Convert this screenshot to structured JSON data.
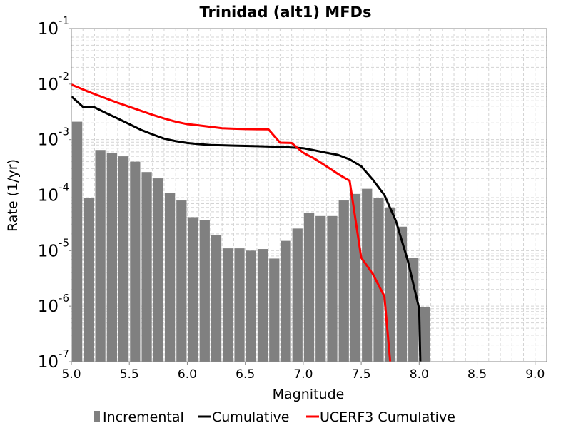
{
  "chart_data": {
    "type": "bar",
    "title": "Trinidad (alt1) MFDs",
    "xlabel": "Magnitude",
    "ylabel": "Rate (1/yr)",
    "xlim": [
      5.0,
      9.1
    ],
    "ylim": [
      1e-07,
      0.1
    ],
    "yscale": "log",
    "grid": true,
    "legend_position": "bottom",
    "x_ticks": [
      "5.0",
      "5.5",
      "6.0",
      "6.5",
      "7.0",
      "7.5",
      "8.0",
      "8.5",
      "9.0"
    ],
    "y_ticks": [
      {
        "base": "10",
        "exp": "-1"
      },
      {
        "base": "10",
        "exp": "-2"
      },
      {
        "base": "10",
        "exp": "-3"
      },
      {
        "base": "10",
        "exp": "-4"
      },
      {
        "base": "10",
        "exp": "-5"
      },
      {
        "base": "10",
        "exp": "-6"
      },
      {
        "base": "10",
        "exp": "-7"
      }
    ],
    "series": [
      {
        "name": "Incremental",
        "kind": "bar",
        "color": "#808080",
        "bin_width": 0.1,
        "x": [
          5.05,
          5.15,
          5.25,
          5.35,
          5.45,
          5.55,
          5.65,
          5.75,
          5.85,
          5.95,
          6.05,
          6.15,
          6.25,
          6.35,
          6.45,
          6.55,
          6.65,
          6.75,
          6.85,
          6.95,
          7.05,
          7.15,
          7.25,
          7.35,
          7.45,
          7.55,
          7.65,
          7.75,
          7.85,
          7.95,
          8.05
        ],
        "y": [
          0.0021,
          9e-05,
          0.00065,
          0.00058,
          0.0005,
          0.0004,
          0.00026,
          0.0002,
          0.00011,
          8e-05,
          4e-05,
          3.5e-05,
          1.9e-05,
          1.1e-05,
          1.1e-05,
          1e-05,
          1.07e-05,
          7.2e-06,
          1.5e-05,
          2.5e-05,
          4.8e-05,
          4.2e-05,
          4.2e-05,
          8e-05,
          0.000105,
          0.00013,
          9e-05,
          6e-05,
          2.7e-05,
          7.3e-06,
          9.5e-07
        ]
      },
      {
        "name": "Cumulative",
        "kind": "line",
        "color": "#000000",
        "x": [
          5.0,
          5.1,
          5.2,
          5.3,
          5.4,
          5.5,
          5.6,
          5.7,
          5.8,
          5.9,
          6.0,
          6.1,
          6.2,
          6.3,
          6.4,
          6.5,
          6.6,
          6.7,
          6.8,
          6.9,
          7.0,
          7.1,
          7.2,
          7.3,
          7.4,
          7.5,
          7.6,
          7.7,
          7.8,
          7.9,
          8.0,
          8.01
        ],
        "y": [
          0.006,
          0.0039,
          0.0038,
          0.003,
          0.0024,
          0.0019,
          0.0015,
          0.00124,
          0.00104,
          0.00094,
          0.00087,
          0.00083,
          0.0008,
          0.00079,
          0.00078,
          0.00077,
          0.00076,
          0.00075,
          0.00074,
          0.00072,
          0.0007,
          0.00064,
          0.00058,
          0.00053,
          0.00044,
          0.00033,
          0.00019,
          0.0001,
          3.4e-05,
          6.8e-06,
          9e-07,
          1e-07
        ]
      },
      {
        "name": "UCERF3 Cumulative",
        "kind": "line",
        "color": "#ff0000",
        "x": [
          5.0,
          5.1,
          5.2,
          5.3,
          5.4,
          5.5,
          5.6,
          5.7,
          5.8,
          5.9,
          6.0,
          6.1,
          6.2,
          6.3,
          6.4,
          6.5,
          6.6,
          6.7,
          6.8,
          6.9,
          7.0,
          7.1,
          7.2,
          7.3,
          7.4,
          7.5,
          7.6,
          7.7,
          7.75
        ],
        "y": [
          0.0098,
          0.008,
          0.0066,
          0.0055,
          0.0046,
          0.0039,
          0.0033,
          0.0028,
          0.0024,
          0.0021,
          0.0019,
          0.0018,
          0.0017,
          0.0016,
          0.00157,
          0.00155,
          0.00154,
          0.00153,
          0.00088,
          0.00087,
          0.00058,
          0.00045,
          0.00033,
          0.00024,
          0.00018,
          7.5e-06,
          3.8e-06,
          1.5e-06,
          1e-07
        ]
      }
    ]
  }
}
